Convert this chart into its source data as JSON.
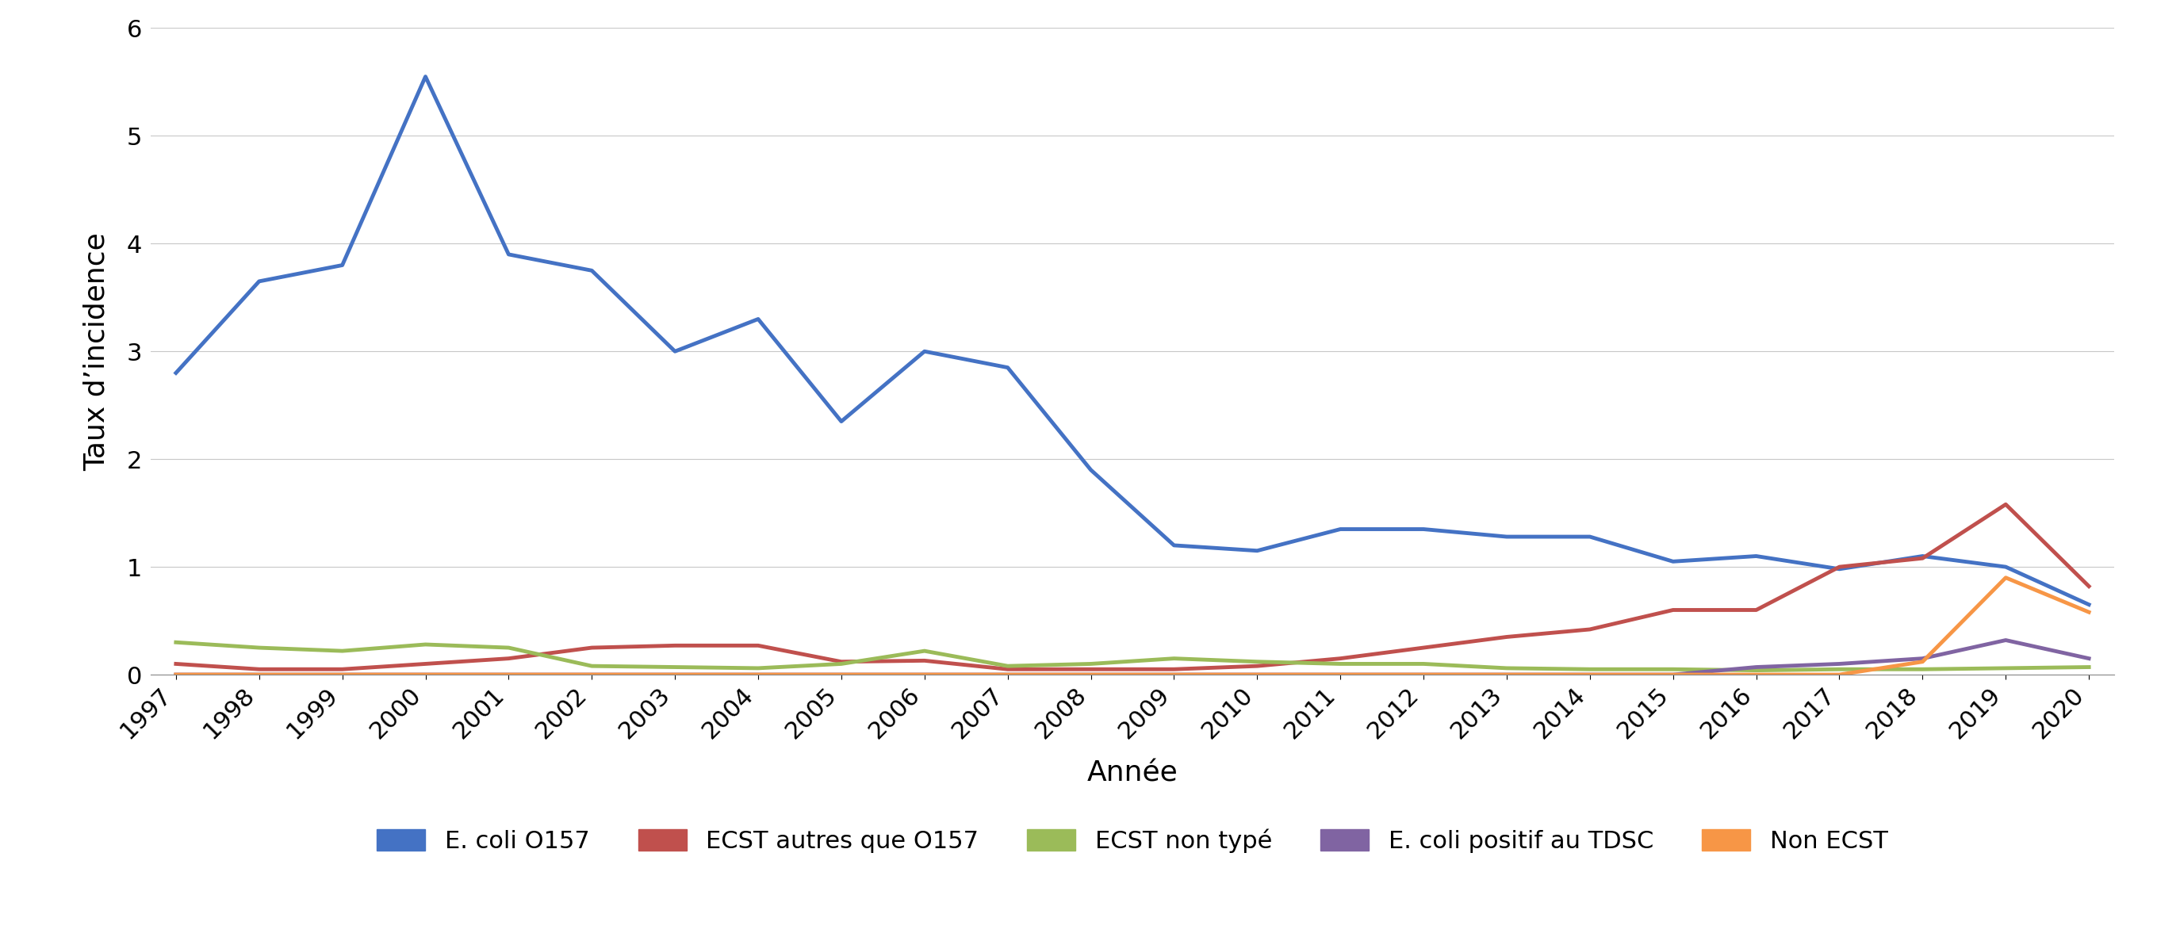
{
  "years": [
    1997,
    1998,
    1999,
    2000,
    2001,
    2002,
    2003,
    2004,
    2005,
    2006,
    2007,
    2008,
    2009,
    2010,
    2011,
    2012,
    2013,
    2014,
    2015,
    2016,
    2017,
    2018,
    2019,
    2020
  ],
  "ecoli_o157": [
    2.8,
    3.65,
    3.8,
    5.55,
    3.9,
    3.75,
    3.0,
    3.3,
    2.35,
    3.0,
    2.85,
    1.9,
    1.2,
    1.15,
    1.35,
    1.35,
    1.28,
    1.28,
    1.05,
    1.1,
    0.98,
    1.1,
    1.0,
    0.65
  ],
  "ecst_autres": [
    0.1,
    0.05,
    0.05,
    0.1,
    0.15,
    0.25,
    0.27,
    0.27,
    0.12,
    0.13,
    0.05,
    0.05,
    0.05,
    0.08,
    0.15,
    0.25,
    0.35,
    0.42,
    0.6,
    0.6,
    1.0,
    1.08,
    1.58,
    0.82
  ],
  "ecst_non_type": [
    0.3,
    0.25,
    0.22,
    0.28,
    0.25,
    0.08,
    0.07,
    0.06,
    0.1,
    0.22,
    0.08,
    0.1,
    0.15,
    0.12,
    0.1,
    0.1,
    0.06,
    0.05,
    0.05,
    0.04,
    0.05,
    0.05,
    0.06,
    0.07
  ],
  "ecoli_positif": [
    0.0,
    0.0,
    0.0,
    0.0,
    0.0,
    0.0,
    0.0,
    0.0,
    0.0,
    0.0,
    0.0,
    0.0,
    0.0,
    0.0,
    0.0,
    0.0,
    0.0,
    0.0,
    0.0,
    0.07,
    0.1,
    0.15,
    0.32,
    0.15
  ],
  "non_ecst": [
    0.0,
    0.0,
    0.0,
    0.0,
    0.0,
    0.0,
    0.0,
    0.0,
    0.0,
    0.0,
    0.0,
    0.0,
    0.0,
    0.0,
    0.0,
    0.0,
    0.0,
    0.0,
    0.0,
    0.0,
    0.0,
    0.12,
    0.9,
    0.58
  ],
  "color_o157": "#4472C4",
  "color_ecst_autres": "#C0504D",
  "color_ecst_non_type": "#9BBB59",
  "color_ecoli_positif": "#8064A2",
  "color_non_ecst": "#F79646",
  "legend_labels": [
    "E. coli O157",
    "ECST autres que O157",
    "ECST non typé",
    "E. coli positif au TDSC",
    "Non ECST"
  ],
  "xlabel": "Année",
  "ylabel": "Taux d’incidence",
  "ylim": [
    0,
    6
  ],
  "yticks": [
    0,
    1,
    2,
    3,
    4,
    5,
    6
  ],
  "background_color": "#ffffff",
  "grid_color": "#c8c8c8",
  "line_width": 3.5,
  "font_size_labels": 26,
  "font_size_ticks": 22,
  "font_size_legend": 22
}
